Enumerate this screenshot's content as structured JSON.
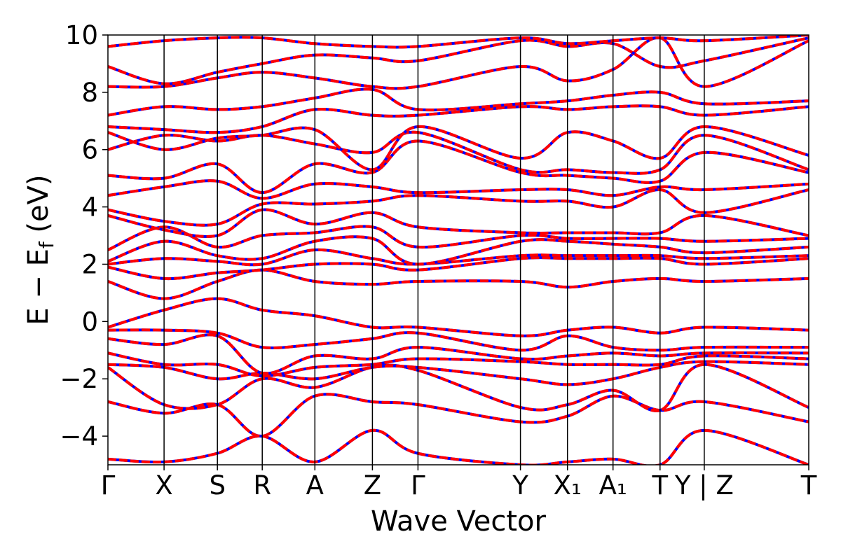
{
  "chart_data": {
    "type": "line",
    "title": "",
    "xlabel": "Wave Vector",
    "ylabel": "E − E",
    "ylabel_sub": "f",
    "ylabel_unit": " (eV)",
    "ylim": [
      -5,
      10
    ],
    "xlim": [
      0,
      1
    ],
    "yticks": [
      -4,
      -2,
      0,
      2,
      4,
      6,
      8,
      10
    ],
    "ytick_labels": [
      "−4",
      "−2",
      "0",
      "2",
      "4",
      "6",
      "8",
      "10"
    ],
    "kpath": [
      {
        "label": "Γ",
        "x": 0.0
      },
      {
        "label": "X",
        "x": 0.0801
      },
      {
        "label": "S",
        "x": 0.1562
      },
      {
        "label": "R",
        "x": 0.2202
      },
      {
        "label": "A",
        "x": 0.2953
      },
      {
        "label": "Z",
        "x": 0.3774
      },
      {
        "label": "Γ",
        "x": 0.4424
      },
      {
        "label": "Y",
        "x": 0.5886
      },
      {
        "label": "X₁",
        "x": 0.6557
      },
      {
        "label": "A₁",
        "x": 0.7207
      },
      {
        "label": "T",
        "x": 0.7878
      },
      {
        "label": "Y | Z",
        "x": 0.8509
      },
      {
        "label": "T",
        "x": 1.0
      }
    ],
    "grid": false,
    "series": [
      {
        "style": "solid",
        "color": "#0000ff",
        "width": 4
      },
      {
        "style": "dashed",
        "color": "#ff0000",
        "width": 4
      }
    ],
    "bands": [
      {
        "x": [
          0,
          0.08,
          0.156,
          0.22,
          0.295,
          0.377,
          0.442,
          0.589,
          0.656,
          0.721,
          0.788,
          0.851,
          1.0
        ],
        "y": [
          -4.8,
          -4.9,
          -4.6,
          -4.0,
          -4.9,
          -3.8,
          -4.6,
          -5.0,
          -4.9,
          -4.8,
          -5.0,
          -3.8,
          -5.0
        ]
      },
      {
        "x": [
          0,
          0.08,
          0.156,
          0.22,
          0.295,
          0.377,
          0.442,
          0.589,
          0.656,
          0.721,
          0.788,
          0.851,
          1.0
        ],
        "y": [
          -2.8,
          -3.2,
          -2.9,
          -4.0,
          -2.6,
          -2.8,
          -2.9,
          -3.5,
          -3.3,
          -2.6,
          -3.1,
          -2.8,
          -3.5
        ]
      },
      {
        "x": [
          0,
          0.08,
          0.156,
          0.22,
          0.295,
          0.377,
          0.442,
          0.589,
          0.656,
          0.721,
          0.788,
          0.851,
          1.0
        ],
        "y": [
          -1.6,
          -2.9,
          -2.9,
          -2.0,
          -2.3,
          -1.6,
          -1.7,
          -3.0,
          -2.9,
          -2.4,
          -3.1,
          -1.5,
          -3.0
        ]
      },
      {
        "x": [
          0,
          0.08,
          0.156,
          0.22,
          0.295,
          0.377,
          0.442,
          0.589,
          0.656,
          0.721,
          0.788,
          0.851,
          1.0
        ],
        "y": [
          -1.5,
          -1.6,
          -2.0,
          -1.8,
          -2.0,
          -1.6,
          -1.6,
          -2.0,
          -2.2,
          -2.0,
          -1.6,
          -1.4,
          -1.5
        ]
      },
      {
        "x": [
          0,
          0.08,
          0.156,
          0.22,
          0.295,
          0.377,
          0.442,
          0.589,
          0.656,
          0.721,
          0.788,
          0.851,
          1.0
        ],
        "y": [
          -1.1,
          -1.5,
          -1.5,
          -1.9,
          -1.6,
          -1.5,
          -1.3,
          -1.4,
          -1.5,
          -1.5,
          -1.5,
          -1.2,
          -1.3
        ]
      },
      {
        "x": [
          0,
          0.08,
          0.156,
          0.22,
          0.295,
          0.377,
          0.442,
          0.589,
          0.656,
          0.721,
          0.788,
          0.851,
          1.0
        ],
        "y": [
          -0.6,
          -0.8,
          -0.5,
          -1.8,
          -1.2,
          -1.3,
          -0.9,
          -1.3,
          -1.2,
          -1.1,
          -1.2,
          -1.1,
          -1.1
        ]
      },
      {
        "x": [
          0,
          0.08,
          0.156,
          0.22,
          0.295,
          0.377,
          0.442,
          0.589,
          0.656,
          0.721,
          0.788,
          0.851,
          1.0
        ],
        "y": [
          -0.3,
          -0.3,
          -0.4,
          -0.9,
          -0.8,
          -0.6,
          -0.4,
          -1.0,
          -0.5,
          -0.9,
          -1.0,
          -0.9,
          -0.9
        ]
      },
      {
        "x": [
          0,
          0.08,
          0.156,
          0.22,
          0.295,
          0.377,
          0.442,
          0.589,
          0.656,
          0.721,
          0.788,
          0.851,
          1.0
        ],
        "y": [
          -0.2,
          0.4,
          0.8,
          0.4,
          0.2,
          -0.2,
          -0.2,
          -0.5,
          -0.3,
          -0.2,
          -0.4,
          -0.2,
          -0.3
        ]
      },
      {
        "x": [
          0,
          0.08,
          0.156,
          0.22,
          0.295,
          0.377,
          0.442,
          0.589,
          0.656,
          0.721,
          0.788,
          0.851,
          1.0
        ],
        "y": [
          1.4,
          0.8,
          1.4,
          1.8,
          1.4,
          1.3,
          1.4,
          1.4,
          1.2,
          1.4,
          1.5,
          1.4,
          1.5
        ]
      },
      {
        "x": [
          0,
          0.08,
          0.156,
          0.22,
          0.295,
          0.377,
          0.442,
          0.589,
          0.656,
          0.721,
          0.788,
          0.851,
          1.0
        ],
        "y": [
          1.9,
          1.5,
          1.7,
          1.8,
          2.0,
          2.0,
          1.8,
          2.2,
          2.2,
          2.2,
          2.2,
          2.0,
          2.2
        ]
      },
      {
        "x": [
          0,
          0.08,
          0.156,
          0.22,
          0.295,
          0.377,
          0.442,
          0.589,
          0.656,
          0.721,
          0.788,
          0.851,
          1.0
        ],
        "y": [
          2.0,
          2.2,
          2.1,
          2.0,
          2.5,
          2.2,
          2.0,
          2.3,
          2.3,
          2.3,
          2.3,
          2.2,
          2.3
        ]
      },
      {
        "x": [
          0,
          0.08,
          0.156,
          0.22,
          0.295,
          0.377,
          0.442,
          0.589,
          0.656,
          0.721,
          0.788,
          0.851,
          1.0
        ],
        "y": [
          2.1,
          2.8,
          2.3,
          2.2,
          2.8,
          2.9,
          2.0,
          2.8,
          2.8,
          2.7,
          2.6,
          2.4,
          2.6
        ]
      },
      {
        "x": [
          0,
          0.08,
          0.156,
          0.22,
          0.295,
          0.377,
          0.442,
          0.589,
          0.656,
          0.721,
          0.788,
          0.851,
          1.0
        ],
        "y": [
          2.5,
          3.3,
          2.6,
          3.0,
          3.1,
          3.3,
          2.6,
          3.0,
          2.9,
          2.9,
          2.9,
          2.8,
          2.9
        ]
      },
      {
        "x": [
          0,
          0.08,
          0.156,
          0.22,
          0.295,
          0.377,
          0.442,
          0.589,
          0.656,
          0.721,
          0.788,
          0.851,
          1.0
        ],
        "y": [
          3.7,
          3.2,
          3.0,
          3.9,
          3.4,
          3.8,
          3.3,
          3.1,
          3.1,
          3.1,
          3.1,
          3.7,
          3.0
        ]
      },
      {
        "x": [
          0,
          0.08,
          0.156,
          0.22,
          0.295,
          0.377,
          0.442,
          0.589,
          0.656,
          0.721,
          0.788,
          0.851,
          1.0
        ],
        "y": [
          3.9,
          3.5,
          3.4,
          4.1,
          4.1,
          4.2,
          4.4,
          4.2,
          4.2,
          4.0,
          4.6,
          3.8,
          4.6
        ]
      },
      {
        "x": [
          0,
          0.08,
          0.156,
          0.22,
          0.295,
          0.377,
          0.442,
          0.589,
          0.656,
          0.721,
          0.788,
          0.851,
          1.0
        ],
        "y": [
          4.4,
          4.7,
          4.9,
          4.3,
          4.8,
          4.7,
          4.5,
          4.6,
          4.6,
          4.4,
          4.7,
          4.6,
          4.8
        ]
      },
      {
        "x": [
          0,
          0.08,
          0.156,
          0.22,
          0.295,
          0.377,
          0.442,
          0.589,
          0.656,
          0.721,
          0.788,
          0.851,
          1.0
        ],
        "y": [
          5.1,
          5.0,
          5.5,
          4.5,
          5.5,
          5.2,
          6.3,
          5.2,
          5.1,
          5.0,
          4.9,
          5.9,
          5.2
        ]
      },
      {
        "x": [
          0,
          0.08,
          0.156,
          0.22,
          0.295,
          0.377,
          0.442,
          0.589,
          0.656,
          0.721,
          0.788,
          0.851,
          1.0
        ],
        "y": [
          6.0,
          6.5,
          6.3,
          6.5,
          6.2,
          5.9,
          6.6,
          5.3,
          5.3,
          5.2,
          5.3,
          6.5,
          5.3
        ]
      },
      {
        "x": [
          0,
          0.08,
          0.156,
          0.22,
          0.295,
          0.377,
          0.442,
          0.589,
          0.656,
          0.721,
          0.788,
          0.851,
          1.0
        ],
        "y": [
          6.6,
          6.0,
          6.4,
          6.5,
          6.7,
          5.3,
          6.8,
          5.7,
          6.6,
          6.3,
          5.7,
          6.8,
          5.8
        ]
      },
      {
        "x": [
          0,
          0.08,
          0.156,
          0.22,
          0.295,
          0.377,
          0.442,
          0.589,
          0.656,
          0.721,
          0.788,
          0.851,
          1.0
        ],
        "y": [
          6.8,
          6.7,
          6.6,
          6.8,
          7.4,
          7.2,
          7.2,
          7.5,
          7.4,
          7.5,
          7.5,
          7.2,
          7.5
        ]
      },
      {
        "x": [
          0,
          0.08,
          0.156,
          0.22,
          0.295,
          0.377,
          0.442,
          0.589,
          0.656,
          0.721,
          0.788,
          0.851,
          1.0
        ],
        "y": [
          7.2,
          7.5,
          7.4,
          7.5,
          7.8,
          8.1,
          7.4,
          7.6,
          7.7,
          7.9,
          8.0,
          7.6,
          7.7
        ]
      },
      {
        "x": [
          0,
          0.08,
          0.156,
          0.22,
          0.295,
          0.377,
          0.442,
          0.589,
          0.656,
          0.721,
          0.788,
          0.851,
          1.0
        ],
        "y": [
          8.2,
          8.2,
          8.5,
          8.7,
          8.5,
          8.2,
          8.2,
          8.9,
          8.4,
          8.8,
          9.9,
          8.2,
          9.8
        ]
      },
      {
        "x": [
          0,
          0.08,
          0.156,
          0.22,
          0.295,
          0.377,
          0.442,
          0.589,
          0.656,
          0.721,
          0.788,
          0.851,
          1.0
        ],
        "y": [
          8.9,
          8.3,
          8.7,
          9.0,
          9.3,
          9.2,
          9.1,
          9.8,
          9.6,
          9.7,
          8.9,
          9.1,
          9.9
        ]
      },
      {
        "x": [
          0,
          0.08,
          0.156,
          0.22,
          0.295,
          0.377,
          0.442,
          0.589,
          0.656,
          0.721,
          0.788,
          0.851,
          1.0
        ],
        "y": [
          9.6,
          9.8,
          9.9,
          9.9,
          9.7,
          9.6,
          9.6,
          9.9,
          9.7,
          9.8,
          9.9,
          9.8,
          10.0
        ]
      }
    ]
  }
}
